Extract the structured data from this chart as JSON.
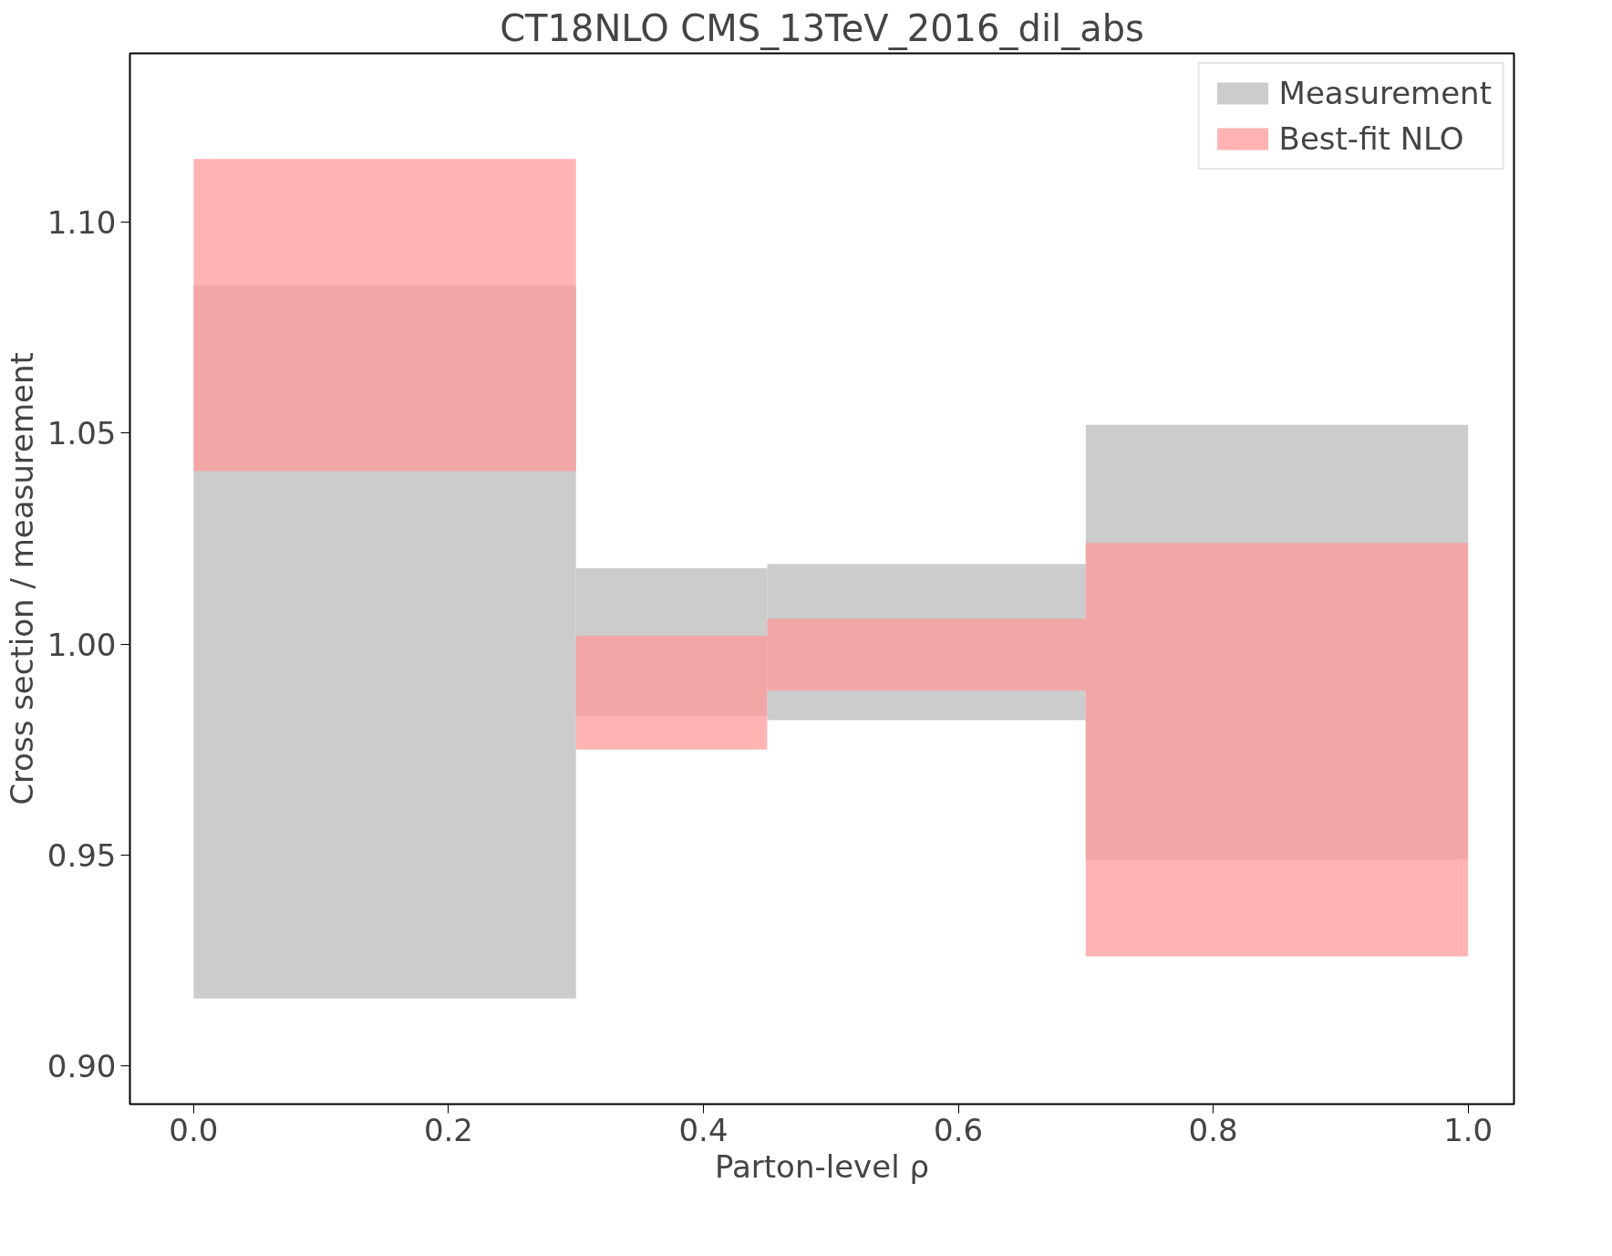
{
  "chart_data": {
    "type": "histogram",
    "title": "CT18NLO CMS_13TeV_2016_dil_abs",
    "xlabel": "Parton-level ρ",
    "ylabel": "Cross section / measurement",
    "bins": [
      0.0,
      0.3,
      0.45,
      0.7,
      1.0
    ],
    "series": [
      {
        "name": "Measurement",
        "color": "#cccccc",
        "base": [
          0.916,
          0.983,
          0.982,
          0.949
        ],
        "values": [
          0.169,
          0.035,
          0.037,
          0.103
        ]
      },
      {
        "name": "Best-fit NLO",
        "color": "#ff9999",
        "base": [
          1.041,
          0.975,
          0.989,
          0.926
        ],
        "values": [
          0.074,
          0.027,
          0.017,
          0.098
        ]
      }
    ],
    "xlim": [
      -0.05,
      1.036
    ],
    "ylim": [
      0.891,
      1.14
    ],
    "xticks": [
      {
        "value": 0.0,
        "label": "0.0"
      },
      0.2,
      0.4,
      0.6,
      0.8,
      {
        "value": 1.0,
        "label": "1.0"
      }
    ],
    "yticks": [
      {
        "value": 0.9,
        "label": "0.90"
      },
      0.95,
      {
        "value": 1.0,
        "label": "1.00"
      },
      1.05,
      {
        "value": 1.1,
        "label": "1.10"
      }
    ],
    "grid": false,
    "legend": "top right"
  }
}
